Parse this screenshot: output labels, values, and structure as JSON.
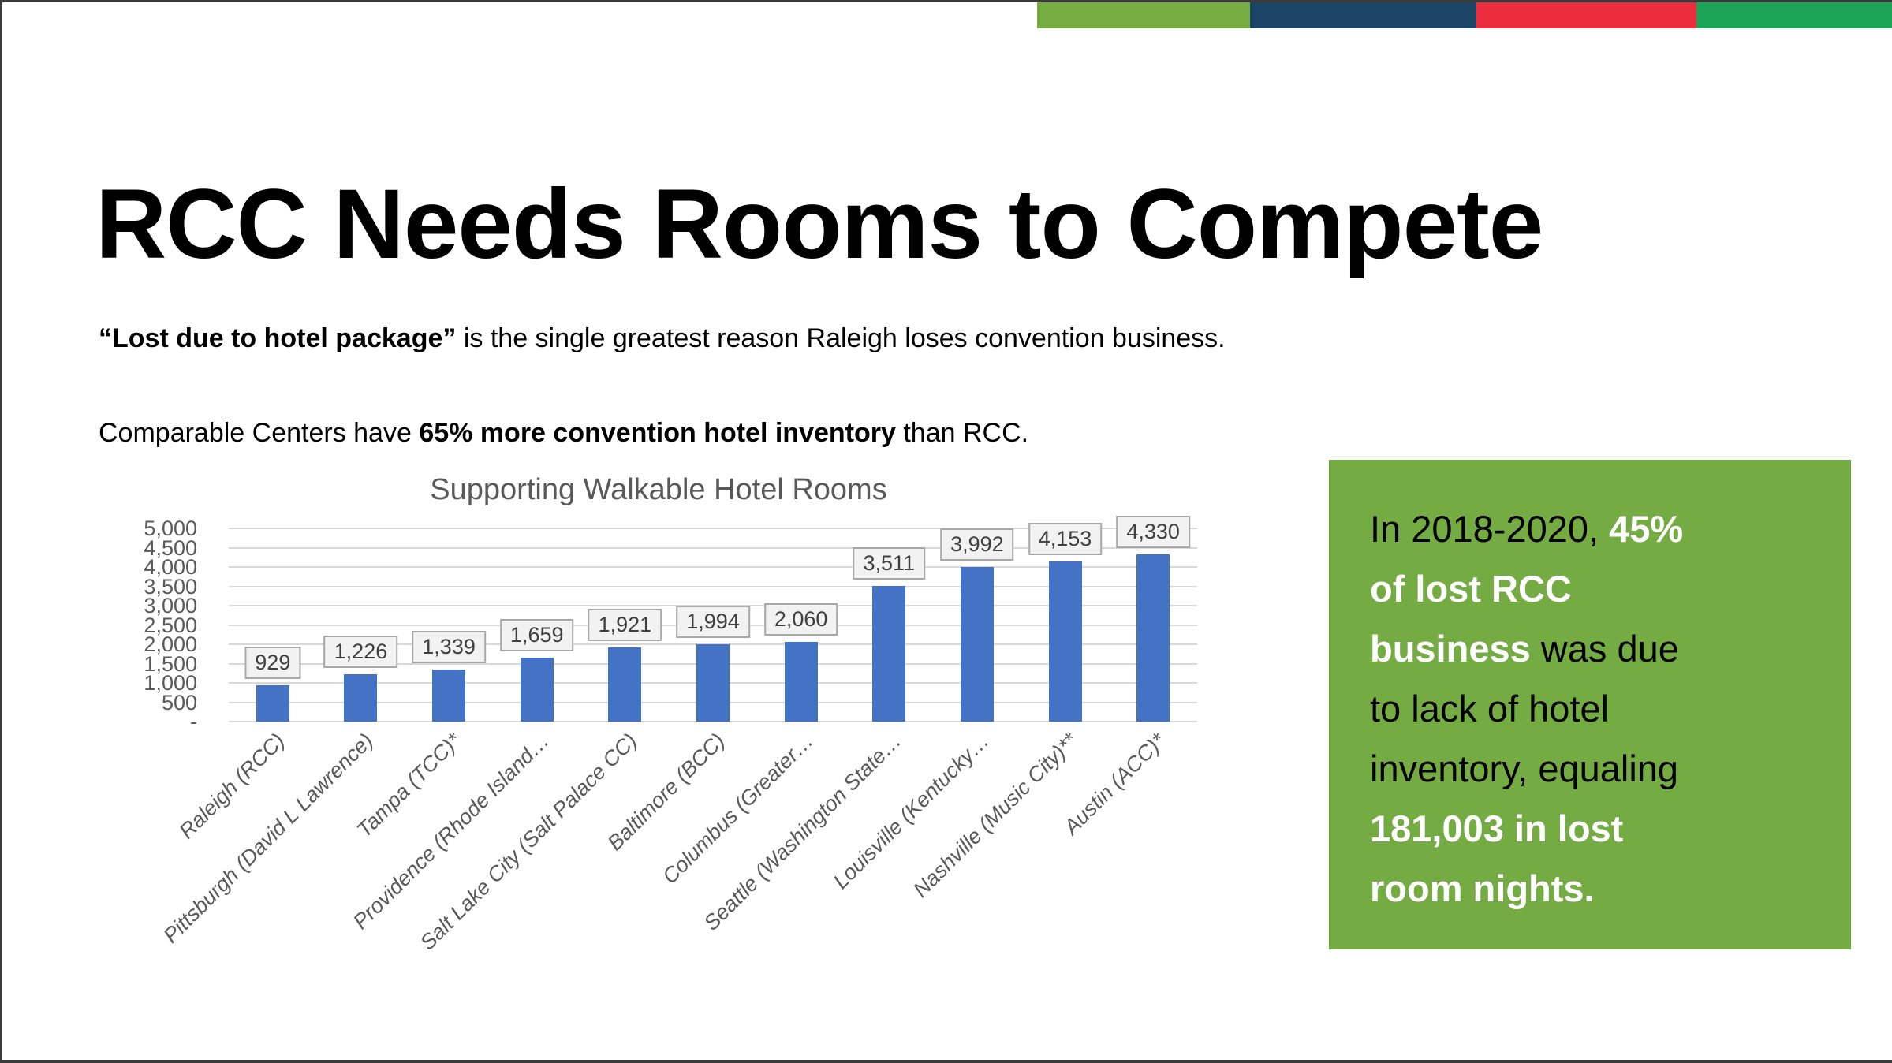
{
  "slide": {
    "title": "RCC Needs Rooms to Compete",
    "paragraphs": [
      {
        "segments": [
          {
            "t": "“Lost due to hotel package”",
            "b": true
          },
          {
            "t": " is the single greatest reason Raleigh loses convention business.",
            "b": false
          }
        ]
      },
      {
        "segments": [
          {
            "t": "Comparable Centers have ",
            "b": false
          },
          {
            "t": "65% more convention hotel inventory",
            "b": true
          },
          {
            "t": " than RCC.",
            "b": false
          }
        ]
      }
    ],
    "top_band": {
      "colors": [
        "#77AD42",
        "#1C4467",
        "#EB2D3D",
        "#1EA455"
      ],
      "widths": [
        270,
        287,
        279,
        248
      ]
    },
    "callout": {
      "bg": "#74AB43",
      "lines": [
        [
          {
            "t": "In 2018-2020, ",
            "em": false
          },
          {
            "t": "45%",
            "em": true
          }
        ],
        [
          {
            "t": "of lost RCC",
            "em": true
          }
        ],
        [
          {
            "t": "business",
            "em": true
          },
          {
            "t": " was due",
            "em": false
          }
        ],
        [
          {
            "t": "to lack of hotel",
            "em": false
          }
        ],
        [
          {
            "t": "inventory, equaling",
            "em": false
          }
        ],
        [
          {
            "t": "181,003 in lost",
            "em": true
          }
        ],
        [
          {
            "t": "room nights.",
            "em": true
          }
        ]
      ]
    }
  },
  "chart_data": {
    "type": "bar",
    "title": "Supporting Walkable Hotel Rooms",
    "categories": [
      "Raleigh (RCC)",
      "Pittsburgh (David L Lawrence)",
      "Tampa (TCC)*",
      "Providence (Rhode Island…",
      "Salt Lake City (Salt Palace CC)",
      "Baltimore (BCC)",
      "Columbus (Greater…",
      "Seattle (Washington State…",
      "Louisville (Kentucky…",
      "Nashville (Music City)**",
      "Austin (ACC)*"
    ],
    "values": [
      929,
      1226,
      1339,
      1659,
      1921,
      1994,
      2060,
      3511,
      3992,
      4153,
      4330
    ],
    "value_labels": [
      "929",
      "1,226",
      "1,339",
      "1,659",
      "1,921",
      "1,994",
      "2,060",
      "3,511",
      "3,992",
      "4,153",
      "4,330"
    ],
    "ylim": [
      0,
      5000
    ],
    "ytick_values": [
      5000,
      4500,
      4000,
      3500,
      3000,
      2500,
      2000,
      1500,
      1000,
      500,
      0
    ],
    "ytick_labels": [
      "5,000",
      "4,500",
      "4,000",
      "3,500",
      "3,000",
      "2,500",
      "2,000",
      "1,500",
      "1,000",
      "500",
      "-"
    ],
    "xlabel": "",
    "ylabel": "",
    "grid": true,
    "legend": false,
    "bar_color": "#4472C4",
    "value_label_bg": "#F2F2F2",
    "value_label_border": "#A8A8A8"
  }
}
